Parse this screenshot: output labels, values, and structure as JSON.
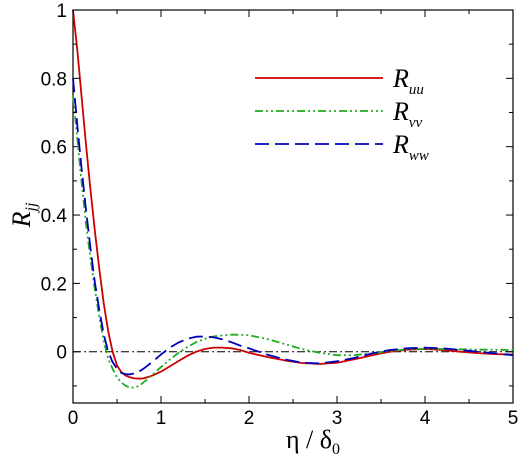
{
  "chart_data": {
    "type": "line",
    "title": "",
    "xlabel": "η / δ0",
    "ylabel": "Rjj",
    "xlim": [
      0,
      5
    ],
    "ylim": [
      -0.15,
      1
    ],
    "x_ticks": [
      0,
      1,
      2,
      3,
      4,
      5
    ],
    "y_ticks": [
      0,
      0.2,
      0.4,
      0.6,
      0.8,
      1
    ],
    "x_tick_labels": [
      "0",
      "1",
      "2",
      "3",
      "4",
      "5"
    ],
    "y_tick_labels": [
      "0",
      "0.2",
      "0.4",
      "0.6",
      "0.8",
      "1"
    ],
    "reference_line": {
      "y": 0,
      "style": "dash-dot",
      "color": "#000000"
    },
    "legend_position": "top-right",
    "series": [
      {
        "name": "Ruu",
        "label_main": "R",
        "label_sub": "uu",
        "color": "#cc0000",
        "dash": "solid",
        "x": [
          0,
          0.05,
          0.1,
          0.15,
          0.2,
          0.25,
          0.3,
          0.35,
          0.4,
          0.45,
          0.5,
          0.55,
          0.6,
          0.65,
          0.7,
          0.75,
          0.8,
          0.9,
          1.0,
          1.1,
          1.2,
          1.3,
          1.4,
          1.5,
          1.6,
          1.7,
          1.8,
          1.9,
          2.0,
          2.2,
          2.4,
          2.6,
          2.8,
          3.0,
          3.2,
          3.4,
          3.6,
          3.8,
          4.0,
          4.2,
          4.4,
          4.6,
          4.8,
          5.0
        ],
        "y": [
          1.0,
          0.88,
          0.74,
          0.6,
          0.47,
          0.35,
          0.24,
          0.14,
          0.06,
          0.0,
          -0.04,
          -0.06,
          -0.07,
          -0.075,
          -0.078,
          -0.079,
          -0.078,
          -0.07,
          -0.058,
          -0.043,
          -0.027,
          -0.012,
          0.0,
          0.008,
          0.012,
          0.012,
          0.01,
          0.005,
          -0.003,
          -0.015,
          -0.025,
          -0.033,
          -0.036,
          -0.032,
          -0.022,
          -0.01,
          0.0,
          0.006,
          0.008,
          0.005,
          0.0,
          -0.004,
          -0.007,
          -0.008
        ]
      },
      {
        "name": "Rvv",
        "label_main": "R",
        "label_sub": "vv",
        "color": "#22aa22",
        "dash": "dash-dot-dot",
        "x": [
          0,
          0.05,
          0.1,
          0.15,
          0.2,
          0.25,
          0.3,
          0.35,
          0.4,
          0.45,
          0.5,
          0.55,
          0.6,
          0.65,
          0.7,
          0.75,
          0.8,
          0.9,
          1.0,
          1.1,
          1.2,
          1.3,
          1.4,
          1.5,
          1.6,
          1.7,
          1.8,
          1.9,
          2.0,
          2.2,
          2.4,
          2.6,
          2.8,
          3.0,
          3.2,
          3.4,
          3.6,
          3.8,
          4.0,
          4.2,
          4.4,
          4.6,
          4.8,
          5.0
        ],
        "y": [
          0.75,
          0.62,
          0.49,
          0.37,
          0.27,
          0.18,
          0.1,
          0.03,
          -0.02,
          -0.05,
          -0.075,
          -0.09,
          -0.1,
          -0.105,
          -0.105,
          -0.1,
          -0.09,
          -0.068,
          -0.045,
          -0.023,
          -0.003,
          0.014,
          0.028,
          0.038,
          0.045,
          0.048,
          0.05,
          0.05,
          0.048,
          0.038,
          0.023,
          0.008,
          -0.003,
          -0.01,
          -0.01,
          -0.005,
          0.002,
          0.007,
          0.008,
          0.008,
          0.007,
          0.006,
          0.006,
          0.005
        ]
      },
      {
        "name": "Rww",
        "label_main": "R",
        "label_sub": "ww",
        "color": "#0000bb",
        "dash": "dashed",
        "x": [
          0,
          0.05,
          0.1,
          0.15,
          0.2,
          0.25,
          0.3,
          0.35,
          0.4,
          0.45,
          0.5,
          0.55,
          0.6,
          0.65,
          0.7,
          0.75,
          0.8,
          0.9,
          1.0,
          1.1,
          1.2,
          1.3,
          1.4,
          1.5,
          1.6,
          1.7,
          1.8,
          1.9,
          2.0,
          2.2,
          2.4,
          2.6,
          2.8,
          3.0,
          3.2,
          3.4,
          3.6,
          3.8,
          4.0,
          4.2,
          4.4,
          4.6,
          4.8,
          5.0
        ],
        "y": [
          0.8,
          0.66,
          0.53,
          0.41,
          0.3,
          0.2,
          0.12,
          0.05,
          0.0,
          -0.03,
          -0.05,
          -0.062,
          -0.066,
          -0.066,
          -0.063,
          -0.058,
          -0.05,
          -0.03,
          -0.008,
          0.012,
          0.027,
          0.038,
          0.044,
          0.045,
          0.042,
          0.036,
          0.028,
          0.018,
          0.01,
          -0.008,
          -0.022,
          -0.032,
          -0.034,
          -0.028,
          -0.018,
          -0.005,
          0.005,
          0.01,
          0.012,
          0.01,
          0.005,
          0.0,
          -0.005,
          -0.01
        ]
      }
    ]
  }
}
